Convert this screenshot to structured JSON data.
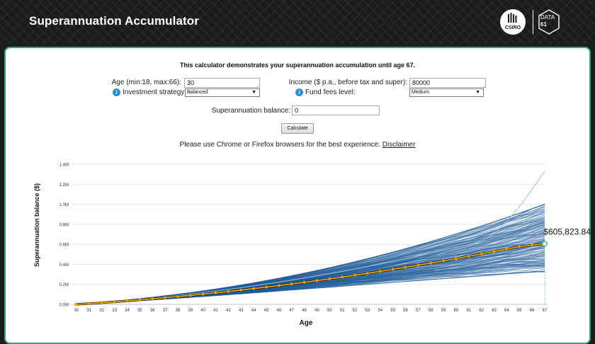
{
  "header": {
    "title": "Superannuation Accumulator",
    "logo_csiro_text": "CSIRO",
    "logo_data61_top": "DATA",
    "logo_data61_bottom": "61"
  },
  "intro": "This calculator demonstrates your superannuation accumulation until age 67.",
  "form": {
    "age_label": "Age (min:18, max:66):",
    "age_value": "30",
    "income_label": "Income ($ p.a., before tax and super):",
    "income_value": "80000",
    "strategy_label": "Investment strategy:",
    "strategy_value": "Balanced",
    "fees_label": "Fund fees level:",
    "fees_value": "Medium",
    "balance_label": "Superannuation balance:",
    "balance_value": "0",
    "calculate_label": "Calculate"
  },
  "note": {
    "text": "Please use Chrome or Firefox browsers for the best experience.",
    "link": "Disclaimer"
  },
  "icons": {
    "info": "info-icon",
    "caret": "caret-down-icon"
  },
  "colors": {
    "accent": "#33a67a",
    "median_line": "#ffb000",
    "median_point": "#f2a900",
    "simulation": "#1f5f99",
    "end_marker": "#4cc08b"
  },
  "chart_data": {
    "type": "line",
    "xlabel": "Age",
    "ylabel": "Superannuation balance ($)",
    "x": [
      30,
      31,
      32,
      33,
      34,
      35,
      36,
      37,
      38,
      39,
      40,
      41,
      42,
      43,
      44,
      45,
      46,
      47,
      48,
      49,
      50,
      51,
      52,
      53,
      54,
      55,
      56,
      57,
      58,
      59,
      60,
      61,
      62,
      63,
      64,
      65,
      66,
      67
    ],
    "y_ticks": [
      "0.0M",
      "0.2M",
      "0.4M",
      "0.6M",
      "0.8M",
      "1.0M",
      "1.2M",
      "1.4M"
    ],
    "ylim": [
      0,
      1400000
    ],
    "series": [
      {
        "values": [
          0,
          8000,
          16500,
          25500,
          35000,
          45000,
          55500,
          66500,
          78000,
          90000,
          102500,
          115500,
          129000,
          143000,
          157500,
          172500,
          188000,
          204000,
          220500,
          237500,
          255000,
          273000,
          291500,
          310500,
          330000,
          350000,
          370500,
          391500,
          413000,
          435000,
          457500,
          480500,
          504000,
          528000,
          552500,
          577500,
          591000,
          605823.84
        ]
      }
    ],
    "final_value_label": "$605,823.84",
    "simulations": {
      "count": 300,
      "envelope_low": [
        0,
        7000,
        15000,
        22000,
        30000,
        37000,
        45000,
        53000,
        62000,
        70000,
        79000,
        88000,
        97000,
        106000,
        116000,
        125000,
        135000,
        145000,
        155000,
        165000,
        175000,
        185000,
        195000,
        205000,
        215000,
        225000,
        235000,
        245000,
        255000,
        265000,
        275000,
        285000,
        295000,
        305000,
        315000,
        325000,
        335000,
        340000
      ],
      "envelope_high": [
        0,
        9500,
        20000,
        31000,
        43000,
        56000,
        70000,
        85000,
        100000,
        116000,
        133000,
        151000,
        170000,
        190000,
        211000,
        233000,
        256000,
        280000,
        305000,
        331000,
        358000,
        386000,
        415000,
        445000,
        476000,
        508000,
        541000,
        575000,
        610000,
        646000,
        683000,
        721000,
        760000,
        800000,
        841000,
        883000,
        926000,
        970000
      ],
      "max_outlier_end": 1330000
    }
  }
}
